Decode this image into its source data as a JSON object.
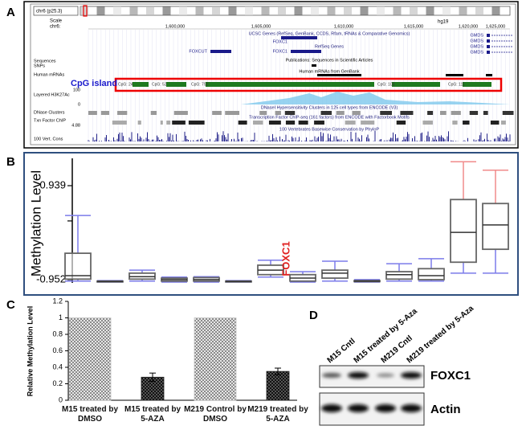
{
  "panel_labels": [
    "A",
    "B",
    "C",
    "D"
  ],
  "genome_browser": {
    "ideogram_label": "chr6 (p25.3)",
    "scale_label": "Scale",
    "chrom_label": "chr6:",
    "assembly": "hg19",
    "coordinates": [
      "1,600,000",
      "1,605,000",
      "1,610,000",
      "1,615,000",
      "1,620,000",
      "1,625,000"
    ],
    "track_titles": [
      "UCSC Genes (RefSeq, GenBank, CCDS, Rfam, tRNAs & Comparative Genomics)",
      "RefSeq Genes",
      "Publications: Sequences in Scientific Articles",
      "Human mRNAs from GenBank",
      "DNaseI Hypersensitivity Clusters in 125 cell types from ENCODE (V3)",
      "Transcription Factor ChIP-seq (161 factors) from ENCODE with Factorbook Motifs",
      "100 Vertebrates Basewise Conservation by PhyloP"
    ],
    "left_labels": [
      "Sequences",
      "SNPs",
      "Human mRNAs",
      "Layered H3K27Ac",
      "DNase Clusters",
      "Txn Factor ChIP",
      "100 Vert. Cons"
    ],
    "scale_values": [
      "100",
      "0",
      "4.88"
    ],
    "gene_labels": [
      "FOXCUT",
      "FOXC1",
      "FOXC1",
      "GMDS",
      "GMDS",
      "GMDS"
    ],
    "cpg_highlight": "CpG island",
    "cpg_labels": [
      "CpG: 24",
      "CpG: 52",
      "CpG: 752",
      "CpG: 103",
      "CpG: 111"
    ]
  },
  "chart_data": [
    {
      "type": "box",
      "y_label": "Methylation Level",
      "ylim": [
        -1.0,
        1.5
      ],
      "yticks": [
        0.939,
        {
          "value": 0.23,
          "label": null
        },
        -0.952
      ],
      "annotation": "FOXC1",
      "box_color": "#666666",
      "whisker_color": "#7b7bea",
      "upper_whisker_colors": [
        "#7b7bea",
        "#7b7bea",
        "#7b7bea",
        "#7b7bea",
        "#7b7bea",
        "#7b7bea",
        "#7b7bea",
        "#7b7bea",
        "#7b7bea",
        "#7b7bea",
        "#7b7bea",
        "#7b7bea",
        "#f08a8a",
        "#f08a8a"
      ],
      "boxes": [
        {
          "min": -0.98,
          "q1": -0.94,
          "median": -0.87,
          "q3": -0.42,
          "max": 0.34
        },
        {
          "min": -1.0,
          "q1": -0.99,
          "median": -0.985,
          "q3": -0.98,
          "max": -0.97
        },
        {
          "min": -0.98,
          "q1": -0.94,
          "median": -0.89,
          "q3": -0.82,
          "max": -0.76
        },
        {
          "min": -1.0,
          "q1": -0.98,
          "median": -0.95,
          "q3": -0.92,
          "max": -0.9
        },
        {
          "min": -1.0,
          "q1": -0.98,
          "median": -0.95,
          "q3": -0.91,
          "max": -0.89
        },
        {
          "min": -1.0,
          "q1": -0.99,
          "median": -0.985,
          "q3": -0.98,
          "max": -0.97
        },
        {
          "min": -0.9,
          "q1": -0.85,
          "median": -0.76,
          "q3": -0.66,
          "max": -0.56
        },
        {
          "min": -1.0,
          "q1": -0.98,
          "median": -0.92,
          "q3": -0.85,
          "max": -0.79
        },
        {
          "min": -0.98,
          "q1": -0.92,
          "median": -0.82,
          "q3": -0.76,
          "max": -0.58
        },
        {
          "min": -1.0,
          "q1": -0.99,
          "median": -0.98,
          "q3": -0.97,
          "max": -0.95
        },
        {
          "min": -0.98,
          "q1": -0.94,
          "median": -0.85,
          "q3": -0.79,
          "max": -0.63
        },
        {
          "min": -0.98,
          "q1": -0.95,
          "median": -0.87,
          "q3": -0.73,
          "max": -0.53
        },
        {
          "min": -0.82,
          "q1": -0.6,
          "median": 0.0,
          "q3": 0.66,
          "max": 1.42
        },
        {
          "min": -0.82,
          "q1": -0.34,
          "median": 0.15,
          "q3": 0.58,
          "max": 1.25
        }
      ]
    },
    {
      "type": "bar",
      "y_label": "Relative Methylation Level",
      "categories": [
        "M15 treated by DMSO",
        "M15 treated by 5-AZA",
        "M219 Control by DMSO",
        "M219 treated by 5-AZA"
      ],
      "values": [
        1.0,
        0.28,
        1.0,
        0.35
      ],
      "errors": [
        null,
        0.05,
        null,
        0.04
      ],
      "colors": [
        "#c4c4c4",
        "#1e1e1e",
        "#c4c4c4",
        "#1e1e1e"
      ],
      "ylim": [
        0,
        1.2
      ],
      "yticks": [
        0,
        0.2,
        0.4,
        0.6,
        0.8,
        1,
        1.2
      ]
    }
  ],
  "western_blot": {
    "lanes": [
      "M15 Cntl",
      "M15 treated by 5-Aza",
      "M219 Cntl",
      "M219 treated by 5-Aza"
    ],
    "proteins": [
      "FOXC1",
      "Actin"
    ]
  }
}
